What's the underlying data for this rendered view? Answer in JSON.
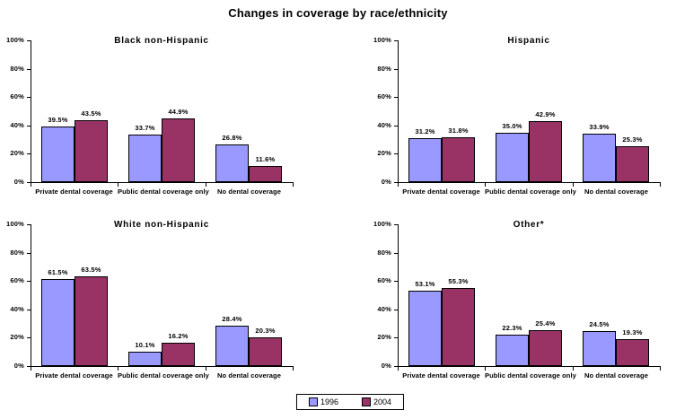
{
  "page": {
    "title": "Changes in coverage by race/ethnicity"
  },
  "legend": {
    "items": [
      {
        "label": "1996",
        "color": "#9999FF"
      },
      {
        "label": "2004",
        "color": "#993366"
      }
    ]
  },
  "colors": {
    "bar_border": "#000000",
    "background": "#FFFFFF",
    "text": "#000000"
  },
  "chart_data": [
    {
      "type": "bar",
      "title": "Black non-Hispanic",
      "categories": [
        "Private dental coverage",
        "Public dental coverage only",
        "No dental coverage"
      ],
      "yticks": [
        "0%",
        "20%",
        "40%",
        "60%",
        "80%",
        "100%"
      ],
      "ylim": [
        0,
        100
      ],
      "grid": false,
      "series": [
        {
          "name": "1996",
          "values": [
            39.5,
            33.7,
            26.8
          ]
        },
        {
          "name": "2004",
          "values": [
            43.5,
            44.9,
            11.6
          ]
        }
      ]
    },
    {
      "type": "bar",
      "title": "Hispanic",
      "categories": [
        "Private dental coverage",
        "Public dental coverage only",
        "No dental coverage"
      ],
      "yticks": [
        "0%",
        "20%",
        "40%",
        "60%",
        "80%",
        "100%"
      ],
      "ylim": [
        0,
        100
      ],
      "grid": false,
      "series": [
        {
          "name": "1996",
          "values": [
            31.2,
            35.0,
            33.9
          ]
        },
        {
          "name": "2004",
          "values": [
            31.8,
            42.9,
            25.3
          ]
        }
      ]
    },
    {
      "type": "bar",
      "title": "White non-Hispanic",
      "categories": [
        "Private dental coverage",
        "Public dental coverage only",
        "No dental coverage"
      ],
      "yticks": [
        "0%",
        "20%",
        "40%",
        "60%",
        "80%",
        "100%"
      ],
      "ylim": [
        0,
        100
      ],
      "grid": false,
      "series": [
        {
          "name": "1996",
          "values": [
            61.5,
            10.1,
            28.4
          ]
        },
        {
          "name": "2004",
          "values": [
            63.5,
            16.2,
            20.3
          ]
        }
      ]
    },
    {
      "type": "bar",
      "title": "Other*",
      "categories": [
        "Private dental coverage",
        "Public dental coverage only",
        "No dental coverage"
      ],
      "yticks": [
        "0%",
        "20%",
        "40%",
        "60%",
        "80%",
        "100%"
      ],
      "ylim": [
        0,
        100
      ],
      "grid": false,
      "series": [
        {
          "name": "1996",
          "values": [
            53.1,
            22.3,
            24.5
          ]
        },
        {
          "name": "2004",
          "values": [
            55.3,
            25.4,
            19.3
          ]
        }
      ]
    }
  ]
}
